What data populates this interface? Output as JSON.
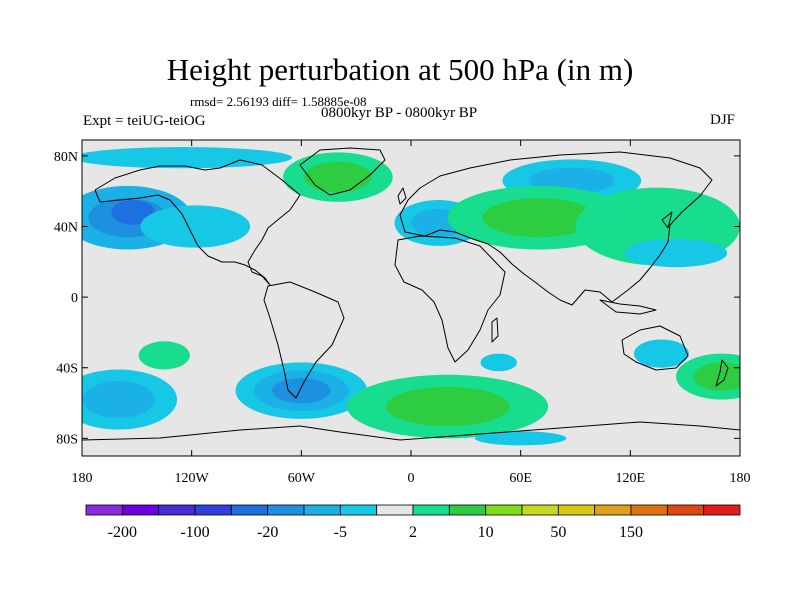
{
  "title": "Height perturbation at 500 hPa (in m)",
  "stats_line": "rmsd= 2.56193 diff= 1.58885e-08",
  "period_label": "0800kyr BP - 0800kyr BP",
  "experiment_label": "Expt = teiUG-teiOG",
  "season_label": "DJF",
  "latitude_ticks": [
    {
      "label": "80N",
      "lat": 80
    },
    {
      "label": "40N",
      "lat": 40
    },
    {
      "label": "0",
      "lat": 0
    },
    {
      "label": "40S",
      "lat": -40
    },
    {
      "label": "80S",
      "lat": -80
    }
  ],
  "longitude_ticks": [
    {
      "label": "180",
      "lon": -180
    },
    {
      "label": "120W",
      "lon": -120
    },
    {
      "label": "60W",
      "lon": -60
    },
    {
      "label": "0",
      "lon": 0
    },
    {
      "label": "60E",
      "lon": 60
    },
    {
      "label": "120E",
      "lon": 120
    },
    {
      "label": "180",
      "lon": 180
    }
  ],
  "colorbar": {
    "colors": [
      "#8a2be2",
      "#6a00e0",
      "#4b2cd4",
      "#2f3fe0",
      "#1e6fe0",
      "#1e90e0",
      "#1bb0e6",
      "#17c7e6",
      "#e6e6e6",
      "#18dc8e",
      "#2ecc40",
      "#7fdc1a",
      "#c8d81e",
      "#dcc814",
      "#e0a01c",
      "#e07214",
      "#e04614",
      "#e01c1c"
    ],
    "labels": [
      {
        "text": "-200",
        "after_box": 1
      },
      {
        "text": "-100",
        "after_box": 3
      },
      {
        "text": "-20",
        "after_box": 5
      },
      {
        "text": "-5",
        "after_box": 7
      },
      {
        "text": "2",
        "after_box": 9
      },
      {
        "text": "10",
        "after_box": 11
      },
      {
        "text": "50",
        "after_box": 13
      },
      {
        "text": "150",
        "after_box": 15
      }
    ]
  },
  "anomaly_regions": [
    {
      "id": "north-pacific-low",
      "lon": -155,
      "lat": 45,
      "rlon": 35,
      "rlat": 18,
      "levels": [
        "#1bb0e6",
        "#1e90e0"
      ]
    },
    {
      "id": "north-pacific-low-core",
      "lon": -152,
      "lat": 48,
      "rlon": 12,
      "rlat": 7,
      "levels": [
        "#1e6fe0"
      ]
    },
    {
      "id": "north-america-low",
      "lon": -118,
      "lat": 40,
      "rlon": 30,
      "rlat": 12,
      "levels": [
        "#17c7e6"
      ]
    },
    {
      "id": "arctic-low",
      "lon": -125,
      "lat": 79,
      "rlon": 60,
      "rlat": 6,
      "levels": [
        "#17c7e6"
      ]
    },
    {
      "id": "greenland-high",
      "lon": -40,
      "lat": 68,
      "rlon": 30,
      "rlat": 14,
      "levels": [
        "#18dc8e",
        "#2ecc40"
      ]
    },
    {
      "id": "europe-low",
      "lon": 15,
      "lat": 42,
      "rlon": 24,
      "rlat": 13,
      "levels": [
        "#17c7e6",
        "#1bb0e6"
      ]
    },
    {
      "id": "siberia-low",
      "lon": 88,
      "lat": 66,
      "rlon": 38,
      "rlat": 12,
      "levels": [
        "#17c7e6",
        "#1bb0e6"
      ]
    },
    {
      "id": "asia-high",
      "lon": 70,
      "lat": 45,
      "rlon": 50,
      "rlat": 18,
      "levels": [
        "#18dc8e",
        "#2ecc40"
      ]
    },
    {
      "id": "north-pacific-high",
      "lon": 135,
      "lat": 40,
      "rlon": 45,
      "rlat": 22,
      "levels": [
        "#18dc8e"
      ]
    },
    {
      "id": "kuroshio-low",
      "lon": 145,
      "lat": 25,
      "rlon": 28,
      "rlat": 8,
      "levels": [
        "#17c7e6"
      ]
    },
    {
      "id": "south-pacific-high",
      "lon": -135,
      "lat": -33,
      "rlon": 14,
      "rlat": 8,
      "levels": [
        "#18dc8e"
      ]
    },
    {
      "id": "south-pacific-low",
      "lon": -160,
      "lat": -58,
      "rlon": 32,
      "rlat": 17,
      "levels": [
        "#17c7e6",
        "#1bb0e6"
      ]
    },
    {
      "id": "south-america-low",
      "lon": -60,
      "lat": -53,
      "rlon": 36,
      "rlat": 16,
      "levels": [
        "#17c7e6",
        "#1bb0e6",
        "#1e90e0"
      ]
    },
    {
      "id": "southern-ocean-high",
      "lon": 20,
      "lat": -62,
      "rlon": 55,
      "rlat": 18,
      "levels": [
        "#18dc8e",
        "#2ecc40"
      ]
    },
    {
      "id": "indian-ocean-low",
      "lon": 48,
      "lat": -37,
      "rlon": 10,
      "rlat": 5,
      "levels": [
        "#17c7e6"
      ]
    },
    {
      "id": "australia-low",
      "lon": 137,
      "lat": -32,
      "rlon": 15,
      "rlat": 8,
      "levels": [
        "#17c7e6"
      ]
    },
    {
      "id": "tasman-high",
      "lon": 170,
      "lat": -45,
      "rlon": 25,
      "rlat": 13,
      "levels": [
        "#18dc8e",
        "#2ecc40"
      ]
    },
    {
      "id": "antarctic-low",
      "lon": 60,
      "lat": -80,
      "rlon": 25,
      "rlat": 4,
      "levels": [
        "#17c7e6"
      ]
    }
  ]
}
